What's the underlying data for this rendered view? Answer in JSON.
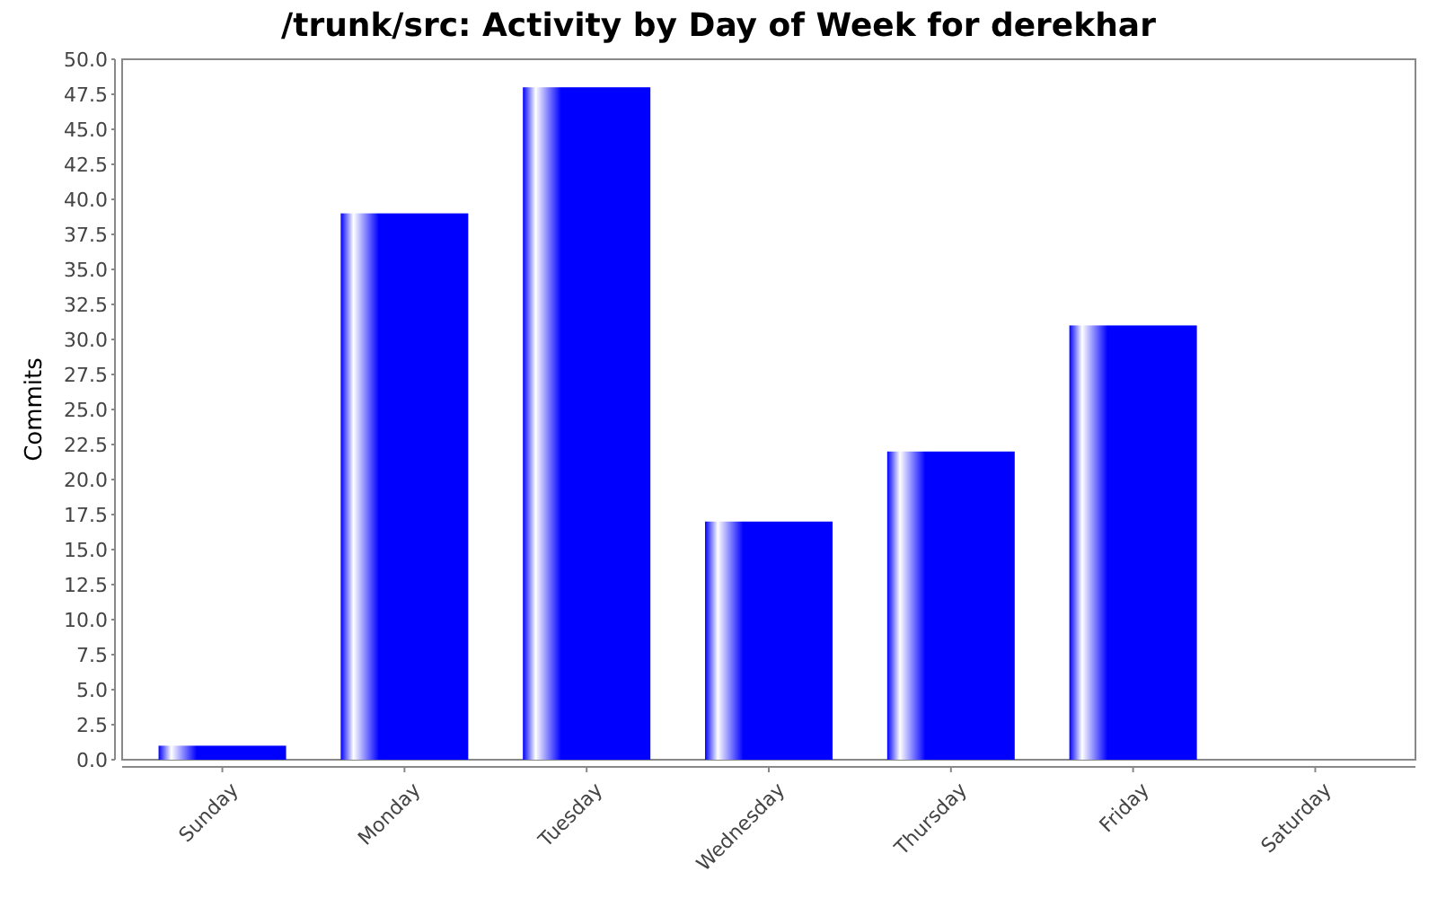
{
  "chart_data": {
    "type": "bar",
    "title": "/trunk/src: Activity by Day of Week for derekhar",
    "ylabel": "Commits",
    "categories": [
      "Sunday",
      "Monday",
      "Tuesday",
      "Wednesday",
      "Thursday",
      "Friday",
      "Saturday"
    ],
    "values": [
      1,
      39,
      48,
      17,
      22,
      31,
      0
    ],
    "color": "#0000ff",
    "ylim": [
      0,
      50
    ],
    "yticks": [
      {
        "value": 0,
        "label": "0.0"
      },
      {
        "value": 2.5,
        "label": "2.5"
      },
      {
        "value": 5,
        "label": "5.0"
      },
      {
        "value": 7.5,
        "label": "7.5"
      },
      {
        "value": 10,
        "label": "10.0"
      },
      {
        "value": 12.5,
        "label": "12.5"
      },
      {
        "value": 15,
        "label": "15.0"
      },
      {
        "value": 17.5,
        "label": "17.5"
      },
      {
        "value": 20,
        "label": "20.0"
      },
      {
        "value": 22.5,
        "label": "22.5"
      },
      {
        "value": 25,
        "label": "25.0"
      },
      {
        "value": 27.5,
        "label": "27.5"
      },
      {
        "value": 30,
        "label": "30.0"
      },
      {
        "value": 32.5,
        "label": "32.5"
      },
      {
        "value": 35,
        "label": "35.0"
      },
      {
        "value": 37.5,
        "label": "37.5"
      },
      {
        "value": 40,
        "label": "40.0"
      },
      {
        "value": 42.5,
        "label": "42.5"
      },
      {
        "value": 45,
        "label": "45.0"
      },
      {
        "value": 47.5,
        "label": "47.5"
      },
      {
        "value": 50,
        "label": "50.0"
      }
    ]
  }
}
